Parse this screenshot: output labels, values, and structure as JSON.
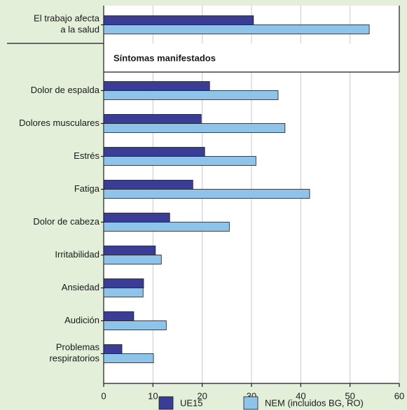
{
  "chart_data": {
    "type": "hbar",
    "categories": [
      "El trabajo afecta a la salud",
      "Dolor de espalda",
      "Dolores musculares",
      "Estrés",
      "Fatiga",
      "Dolor de cabeza",
      "Irritabilidad",
      "Ansiedad",
      "Audición",
      "Problemas respiratorios"
    ],
    "section_label": "Síntomas manifestados",
    "series": [
      {
        "name": "UE15",
        "color": "#3a3d96",
        "values": [
          30.4,
          21.5,
          19.8,
          20.5,
          18.1,
          13.4,
          10.5,
          8.1,
          6.1,
          3.7
        ]
      },
      {
        "name": "NEM (incluidos BG, RO)",
        "color": "#8fc4ea",
        "values": [
          53.9,
          35.4,
          36.8,
          30.9,
          41.8,
          25.5,
          11.7,
          8.0,
          12.7,
          10.1
        ]
      }
    ],
    "xlim": [
      0,
      60
    ],
    "xticks": [
      0,
      10,
      20,
      30,
      40,
      50,
      60
    ],
    "grid": true,
    "legend": "bottom"
  }
}
